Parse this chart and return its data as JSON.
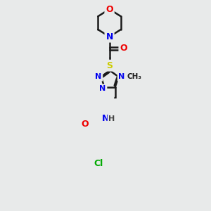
{
  "bg_color": "#e8eaea",
  "atom_colors": {
    "C": "#1a1a1a",
    "N": "#0000ee",
    "O": "#ee0000",
    "S": "#cccc00",
    "Cl": "#00aa00",
    "H": "#444444"
  },
  "bond_color": "#1a1a1a",
  "bond_width": 1.8,
  "title": ""
}
